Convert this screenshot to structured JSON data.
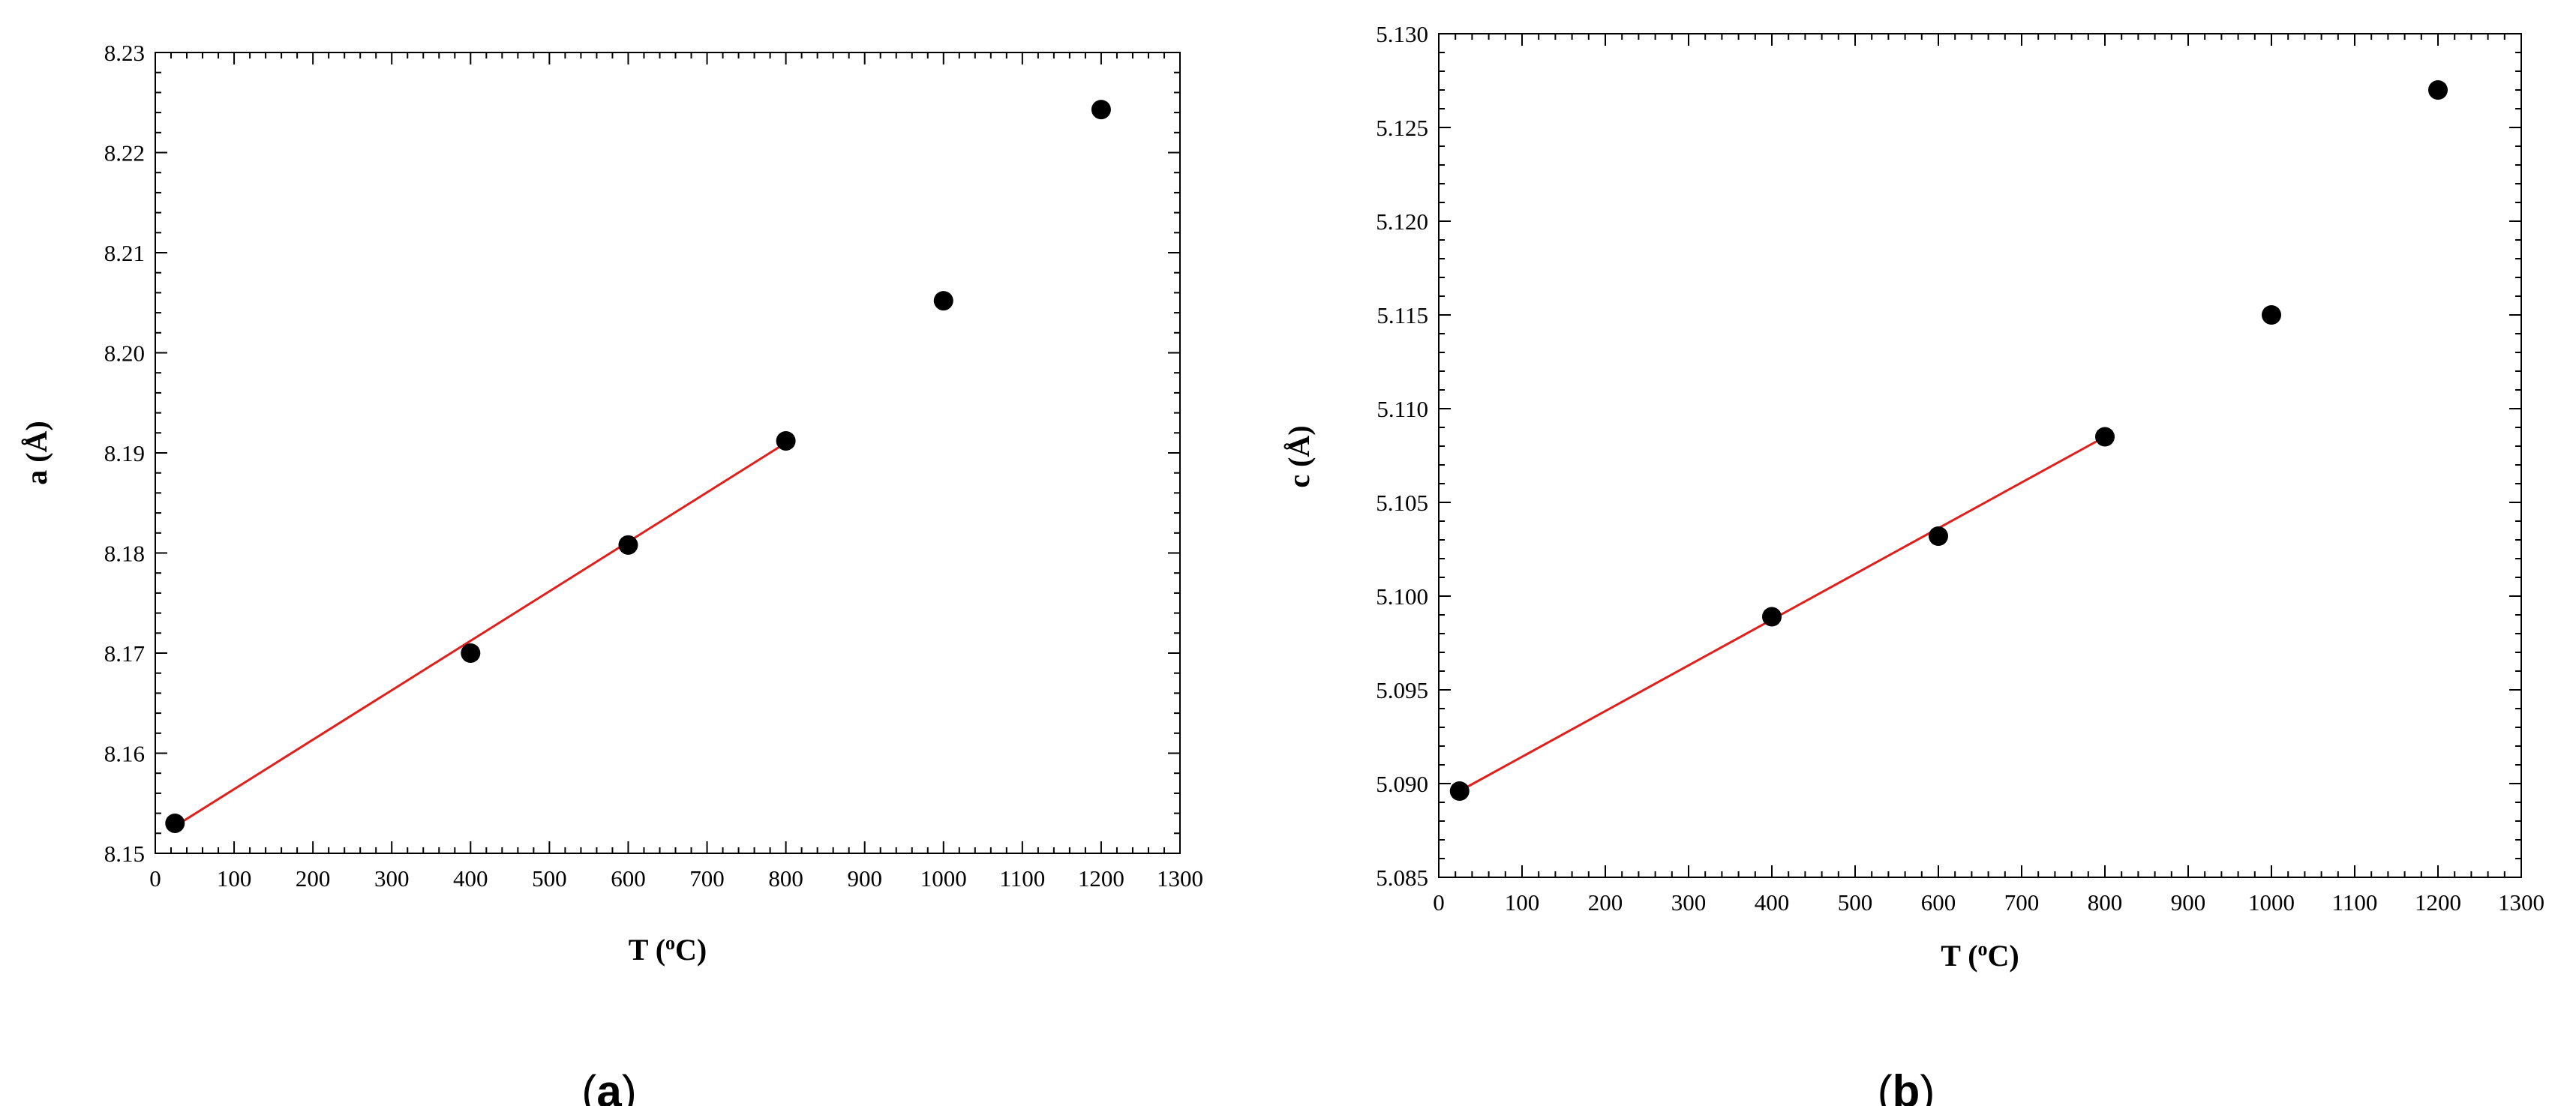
{
  "panels": [
    {
      "label_open": "(",
      "label_letter": "a",
      "label_close": ")",
      "chart_data": {
        "type": "scatter",
        "title": "",
        "xlabel": "T (",
        "xlabel_sup": "o",
        "xlabel_end": "C)",
        "ylabel": "a (Å)",
        "xlim": [
          0,
          1300
        ],
        "ylim": [
          8.15,
          8.23
        ],
        "xticks": [
          0,
          100,
          200,
          300,
          400,
          500,
          600,
          700,
          800,
          900,
          1000,
          1100,
          1200,
          1300
        ],
        "yticks": [
          "8.15",
          "8.16",
          "8.17",
          "8.18",
          "8.19",
          "8.20",
          "8.21",
          "8.22",
          "8.23"
        ],
        "grid": false,
        "points": [
          {
            "x": 25,
            "y": 8.153
          },
          {
            "x": 400,
            "y": 8.17
          },
          {
            "x": 600,
            "y": 8.1808
          },
          {
            "x": 800,
            "y": 8.1912
          },
          {
            "x": 1000,
            "y": 8.2052
          },
          {
            "x": 1200,
            "y": 8.2243
          }
        ],
        "fit_line": {
          "x": [
            25,
            800
          ],
          "y": [
            8.1527,
            8.191
          ],
          "color": "#e0201c"
        },
        "marker_color": "#000000"
      }
    },
    {
      "label_open": "(",
      "label_letter": "b",
      "label_close": ")",
      "chart_data": {
        "type": "scatter",
        "title": "",
        "xlabel": "T (",
        "xlabel_sup": "o",
        "xlabel_end": "C)",
        "ylabel": "c (Å)",
        "xlim": [
          0,
          1300
        ],
        "ylim": [
          5.085,
          5.13
        ],
        "xticks": [
          0,
          100,
          200,
          300,
          400,
          500,
          600,
          700,
          800,
          900,
          1000,
          1100,
          1200,
          1300
        ],
        "yticks": [
          "5.085",
          "5.090",
          "5.095",
          "5.100",
          "5.105",
          "5.110",
          "5.115",
          "5.120",
          "5.125",
          "5.130"
        ],
        "grid": false,
        "points": [
          {
            "x": 25,
            "y": 5.0896
          },
          {
            "x": 400,
            "y": 5.0989
          },
          {
            "x": 600,
            "y": 5.1032
          },
          {
            "x": 800,
            "y": 5.1085
          },
          {
            "x": 1000,
            "y": 5.115
          },
          {
            "x": 1200,
            "y": 5.127
          }
        ],
        "fit_line": {
          "x": [
            25,
            800
          ],
          "y": [
            5.0896,
            5.1085
          ],
          "color": "#e0201c"
        },
        "marker_color": "#000000"
      }
    }
  ]
}
